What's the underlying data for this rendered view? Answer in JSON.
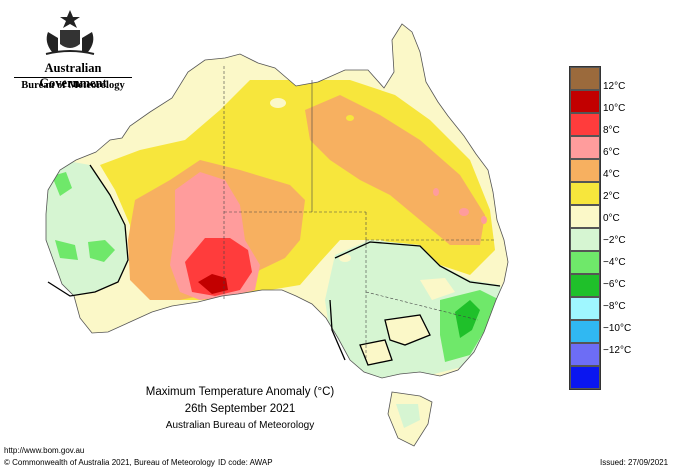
{
  "header": {
    "government": "Australian Government",
    "bureau": "Bureau of Meteorology"
  },
  "caption": {
    "title": "Maximum Temperature Anomaly (°C)",
    "date": "26th September 2021",
    "source": "Australian Bureau of Meteorology"
  },
  "footer": {
    "url": "http://www.bom.gov.au",
    "copyright": "© Commonwealth of Australia 2021, Bureau of Meteorology",
    "id_code": "ID code: AWAP",
    "issued": "Issued: 27/09/2021"
  },
  "legend": [
    {
      "label": "12°C",
      "color": "#9b6a3c"
    },
    {
      "label": "10°C",
      "color": "#c20000"
    },
    {
      "label": "8°C",
      "color": "#ff3c3c"
    },
    {
      "label": "6°C",
      "color": "#ff9c9c"
    },
    {
      "label": "4°C",
      "color": "#f7b060"
    },
    {
      "label": "2°C",
      "color": "#f7e63c"
    },
    {
      "label": "0°C",
      "color": "#fbf8c8"
    },
    {
      "label": "−2°C",
      "color": "#d6f5d2"
    },
    {
      "label": "−4°C",
      "color": "#6fe86a"
    },
    {
      "label": "−6°C",
      "color": "#1fc02a"
    },
    {
      "label": "−8°C",
      "color": "#9ff7ff"
    },
    {
      "label": "−10°C",
      "color": "#30b8f2"
    },
    {
      "label": "−12°C",
      "color": "#6d6df5"
    },
    {
      "label": "",
      "color": "#0a16f0"
    }
  ]
}
